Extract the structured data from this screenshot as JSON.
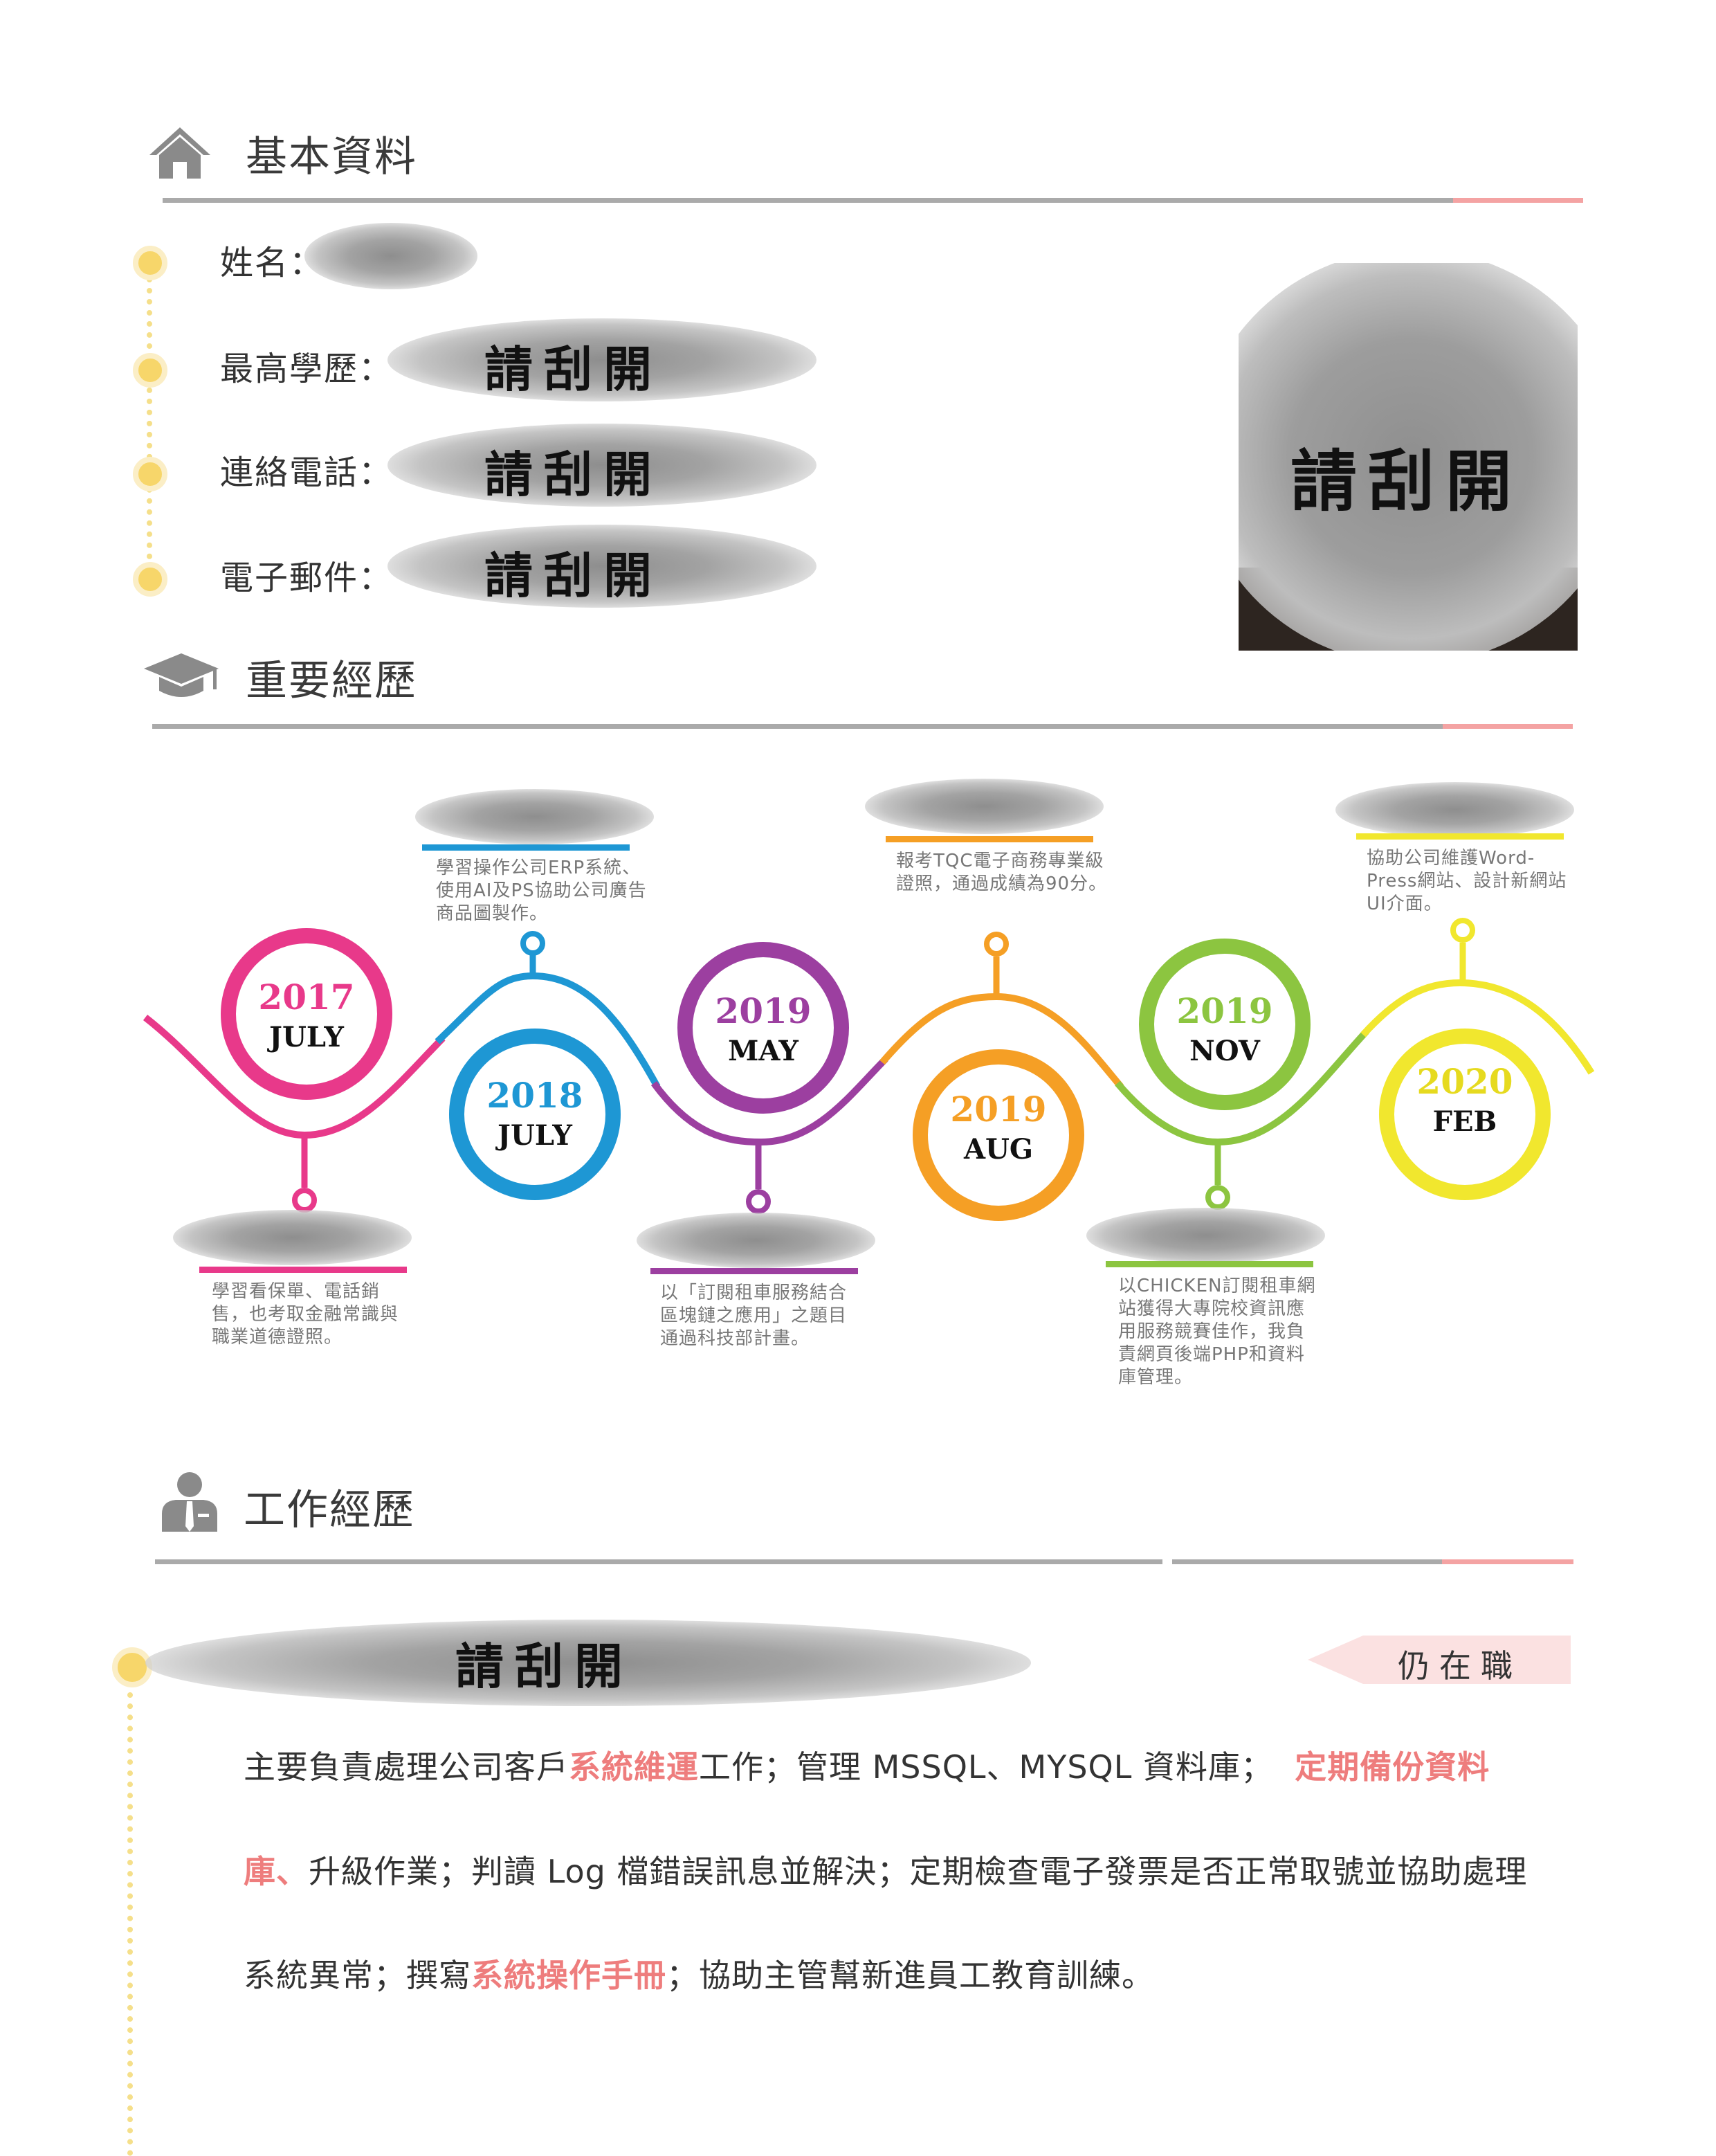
{
  "sections": {
    "basic": "基本資料",
    "experience": "重要經歷",
    "work": "工作經歷"
  },
  "basic": {
    "name_label": "姓名：",
    "education_label": "最高學歷：",
    "phone_label": "連絡電話：",
    "email_label": "電子郵件：",
    "scratch_text": "請刮開",
    "photo_scratch_text": "請刮開"
  },
  "timeline": [
    {
      "year": "2017",
      "month": "JULY",
      "color": "#e8398a",
      "desc": "學習看保單、電話銷售，也考取金融常識與職業道德證照。"
    },
    {
      "year": "2018",
      "month": "JULY",
      "color": "#1e97d4",
      "desc": "學習操作公司ERP系統、使用AI及PS協助公司廣告商品圖製作。"
    },
    {
      "year": "2019",
      "month": "MAY",
      "color": "#9c3fa0",
      "desc": "以「訂閱租車服務結合區塊鏈之應用」之題目通過科技部計畫。"
    },
    {
      "year": "2019",
      "month": "AUG",
      "color": "#f59f25",
      "desc": "報考TQC電子商務專業級證照，通過成績為90分。"
    },
    {
      "year": "2019",
      "month": "NOV",
      "color": "#8cc540",
      "desc": "以CHICKEN訂閱租車網站獲得大專院校資訊應用服務競賽佳作，我負責網頁後端PHP和資料庫管理。"
    },
    {
      "year": "2020",
      "month": "FEB",
      "color": "#f1e72e",
      "desc": "協助公司維護Word-Press網站、設計新網站UI介面。"
    }
  ],
  "work": {
    "company_scratch_text": "請刮開",
    "status": "仍在職",
    "line1": {
      "a": "主要負責處理公司客戶",
      "h1": "系統維運",
      "b": "工作；管理 MSSQL、MYSQL 資料庫；",
      "h2": "定期備份資料"
    },
    "line2": {
      "h3": "庫、",
      "c": "升級作業；判讀 Log 檔錯誤訊息並解決；定期檢查電子發票是否正常取號並協助處理"
    },
    "line3": {
      "d": "系統異常；撰寫",
      "h4": "系統操作手冊",
      "e": "；協助主管幫新進員工教育訓練。"
    }
  },
  "colors": {
    "accent": "#f4a3a3",
    "highlight": "#ee7d7d",
    "bullet": "#f7d66a",
    "rule": "#aaaaaa"
  },
  "icons": [
    "home-icon",
    "graduation-cap-icon",
    "businessman-icon"
  ]
}
